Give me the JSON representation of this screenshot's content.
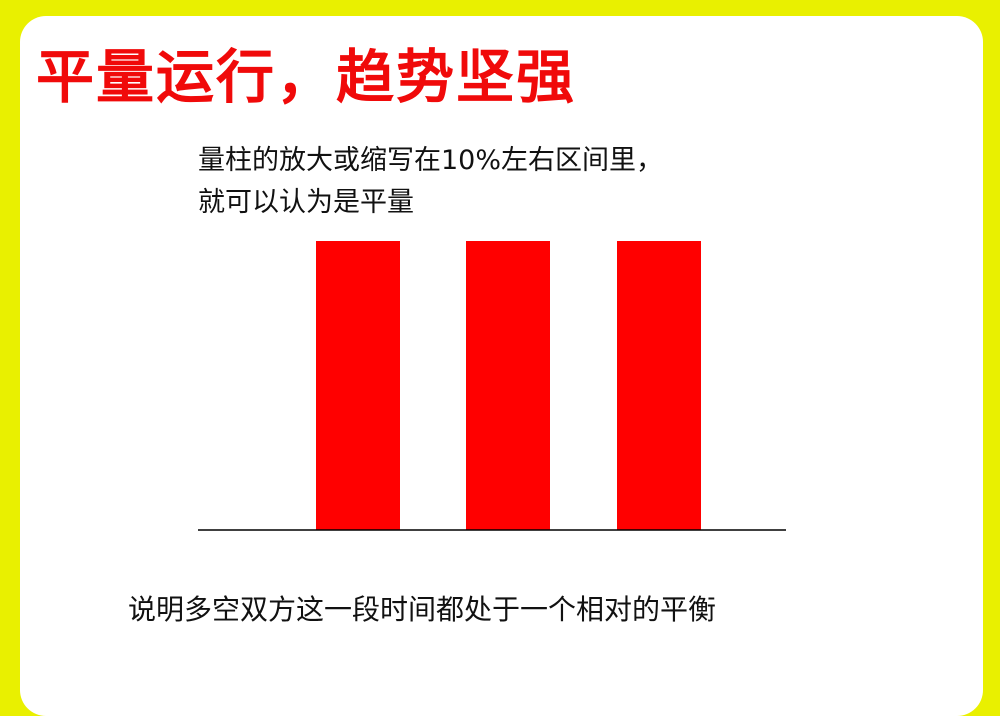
{
  "title": "平量运行，趋势坚强",
  "description": [
    "量柱的放大或缩写在10%左右区间里，",
    "就可以认为是平量"
  ],
  "footer": "说明多空双方这一段时间都处于一个相对的平衡",
  "colors": {
    "background": "#e9f000",
    "bar": "#ff0000",
    "title": "#f00a0a"
  },
  "chart_data": {
    "type": "bar",
    "categories": [
      "",
      "",
      ""
    ],
    "values": [
      1,
      1,
      1
    ],
    "xlabel": "",
    "ylabel": "",
    "grid": false
  }
}
